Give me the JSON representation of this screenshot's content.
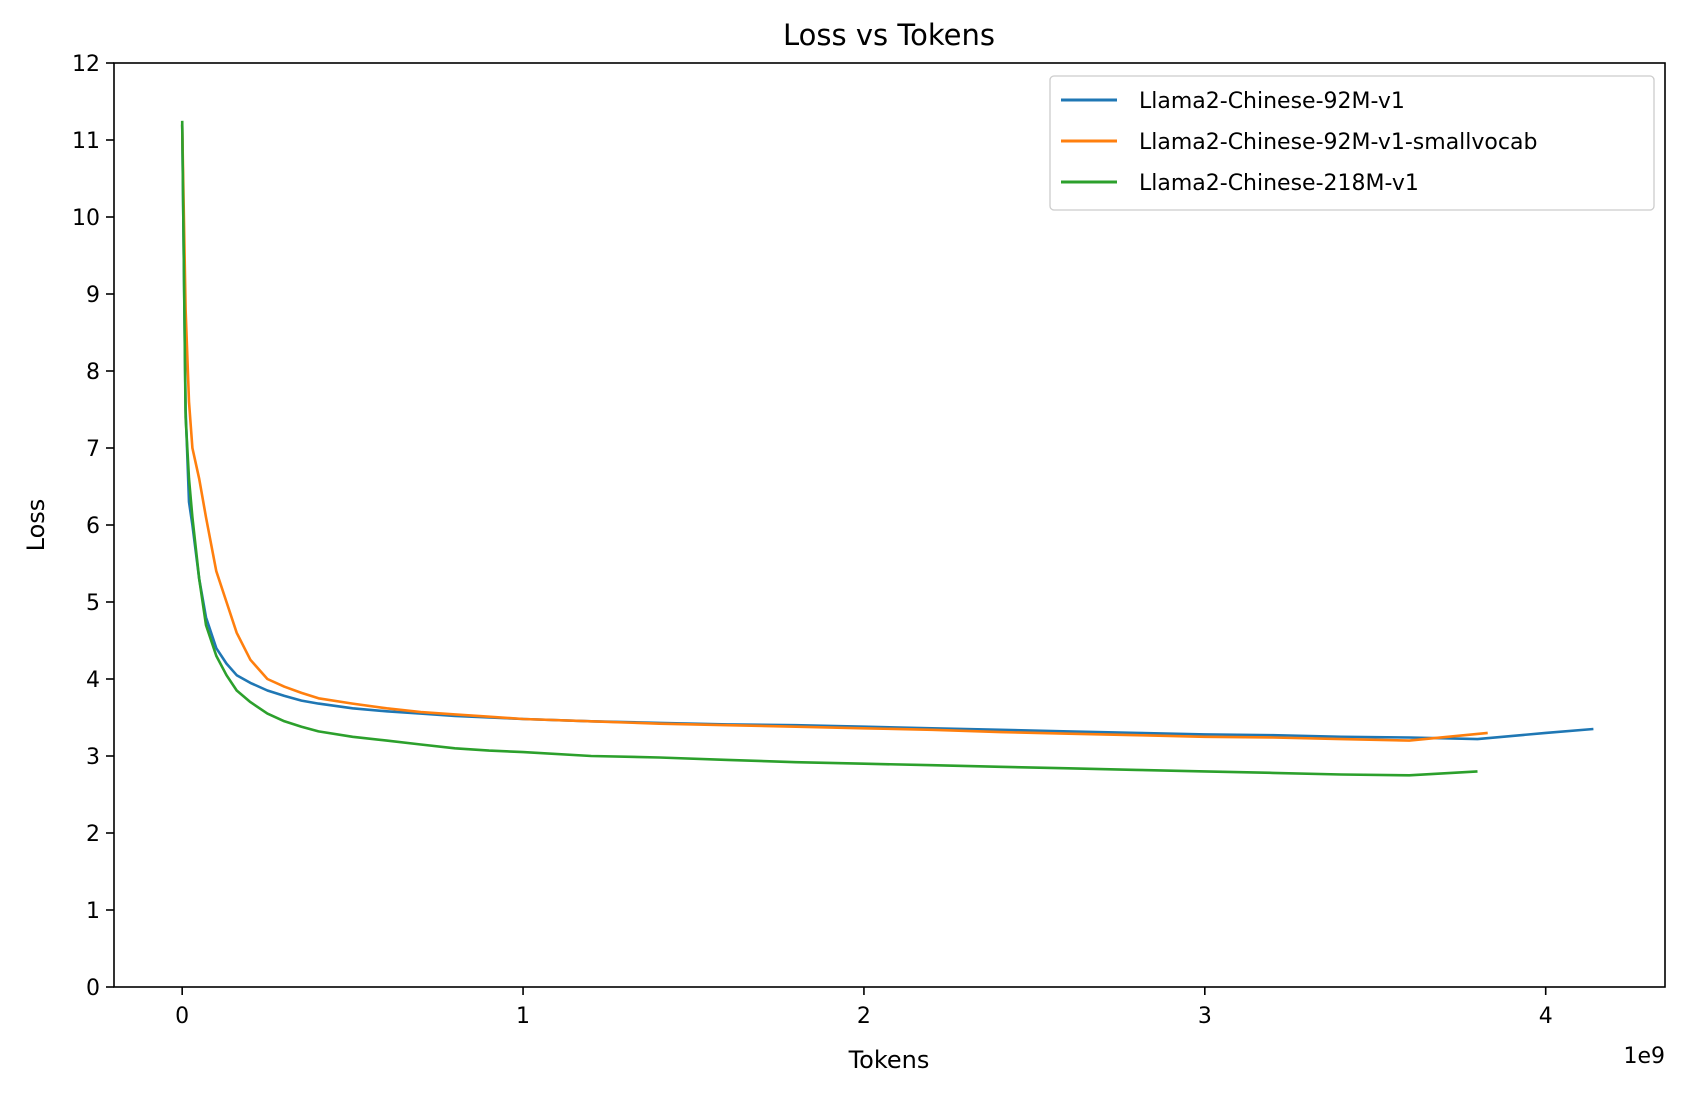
{
  "chart_data": {
    "type": "line",
    "title": "Loss vs Tokens",
    "xlabel": "Tokens",
    "ylabel": "Loss",
    "x_offset_text": "1e9",
    "xlim": [
      -0.2,
      4.35
    ],
    "ylim": [
      0,
      12
    ],
    "x_ticks": [
      0,
      1,
      2,
      3,
      4
    ],
    "x_tick_labels": [
      "0",
      "1",
      "2",
      "3",
      "4"
    ],
    "y_ticks": [
      0,
      1,
      2,
      3,
      4,
      5,
      6,
      7,
      8,
      9,
      10,
      11,
      12
    ],
    "y_tick_labels": [
      "0",
      "1",
      "2",
      "3",
      "4",
      "5",
      "6",
      "7",
      "8",
      "9",
      "10",
      "11",
      "12"
    ],
    "grid": false,
    "legend_position": "top-right",
    "series": [
      {
        "name": "Llama2-Chinese-92M-v1",
        "color": "#1f77b4",
        "x": [
          0,
          0.01,
          0.02,
          0.03,
          0.05,
          0.07,
          0.1,
          0.13,
          0.16,
          0.2,
          0.25,
          0.3,
          0.35,
          0.4,
          0.5,
          0.6,
          0.7,
          0.8,
          0.9,
          1.0,
          1.2,
          1.4,
          1.6,
          1.8,
          2.0,
          2.2,
          2.4,
          2.6,
          2.8,
          3.0,
          3.2,
          3.4,
          3.6,
          3.8,
          4.0,
          4.14
        ],
        "y": [
          11.2,
          7.5,
          6.3,
          6.0,
          5.3,
          4.8,
          4.4,
          4.2,
          4.05,
          3.95,
          3.85,
          3.78,
          3.72,
          3.68,
          3.62,
          3.58,
          3.55,
          3.52,
          3.5,
          3.48,
          3.45,
          3.43,
          3.41,
          3.4,
          3.38,
          3.36,
          3.34,
          3.32,
          3.3,
          3.28,
          3.27,
          3.25,
          3.24,
          3.22,
          3.3,
          3.35
        ]
      },
      {
        "name": "Llama2-Chinese-92M-v1-smallvocab",
        "color": "#ff7f0e",
        "x": [
          0,
          0.01,
          0.02,
          0.03,
          0.05,
          0.07,
          0.1,
          0.13,
          0.16,
          0.2,
          0.25,
          0.3,
          0.35,
          0.4,
          0.5,
          0.6,
          0.7,
          0.8,
          0.9,
          1.0,
          1.2,
          1.4,
          1.6,
          1.8,
          2.0,
          2.2,
          2.4,
          2.6,
          2.8,
          3.0,
          3.2,
          3.4,
          3.6,
          3.83
        ],
        "y": [
          11.2,
          8.8,
          7.6,
          7.0,
          6.6,
          6.1,
          5.4,
          5.0,
          4.6,
          4.25,
          4.0,
          3.9,
          3.82,
          3.75,
          3.68,
          3.62,
          3.57,
          3.54,
          3.51,
          3.48,
          3.45,
          3.42,
          3.4,
          3.38,
          3.36,
          3.34,
          3.31,
          3.29,
          3.27,
          3.25,
          3.24,
          3.22,
          3.2,
          3.3
        ]
      },
      {
        "name": "Llama2-Chinese-218M-v1",
        "color": "#2ca02c",
        "x": [
          0,
          0.01,
          0.02,
          0.03,
          0.05,
          0.07,
          0.1,
          0.13,
          0.16,
          0.2,
          0.25,
          0.3,
          0.35,
          0.4,
          0.5,
          0.6,
          0.7,
          0.8,
          0.9,
          1.0,
          1.2,
          1.4,
          1.6,
          1.8,
          2.0,
          2.2,
          2.4,
          2.6,
          2.8,
          3.0,
          3.2,
          3.4,
          3.6,
          3.8
        ],
        "y": [
          11.25,
          7.4,
          6.6,
          6.1,
          5.3,
          4.7,
          4.3,
          4.05,
          3.85,
          3.7,
          3.55,
          3.45,
          3.38,
          3.32,
          3.25,
          3.2,
          3.15,
          3.1,
          3.07,
          3.05,
          3.0,
          2.98,
          2.95,
          2.92,
          2.9,
          2.88,
          2.86,
          2.84,
          2.82,
          2.8,
          2.78,
          2.76,
          2.75,
          2.8
        ]
      }
    ]
  }
}
